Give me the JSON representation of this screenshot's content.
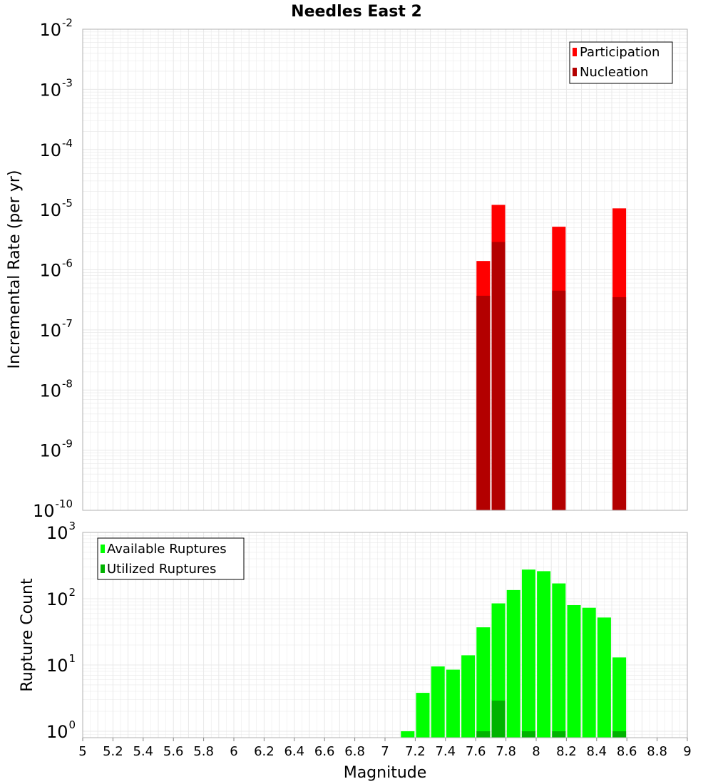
{
  "title": "Needles East 2",
  "xlabel": "Magnitude",
  "x_ticks": [
    "5",
    "5.2",
    "5.4",
    "5.6",
    "5.8",
    "6",
    "6.2",
    "6.4",
    "6.6",
    "6.8",
    "7",
    "7.2",
    "7.4",
    "7.6",
    "7.8",
    "8",
    "8.2",
    "8.4",
    "8.6",
    "8.8",
    "9"
  ],
  "colors": {
    "participation": "#ff0000",
    "nucleation": "#b30000",
    "available": "#00ff00",
    "utilized": "#00b300",
    "grid": "#e8e8e8",
    "frame": "#b0b0b0"
  },
  "chart_data": [
    {
      "type": "bar",
      "name": "rate",
      "ylabel": "Incremental Rate (per yr)",
      "yscale": "log",
      "xlim": [
        5,
        9
      ],
      "ylim": [
        1e-10,
        0.01
      ],
      "y_tick_exponents": [
        "-2",
        "-3",
        "-4",
        "-5",
        "-6",
        "-7",
        "-8",
        "-9",
        "-10"
      ],
      "legend": {
        "location": "top-right",
        "entries": [
          "Participation",
          "Nucleation"
        ]
      },
      "series": [
        {
          "name": "Participation",
          "color": "#ff0000",
          "x": [
            7.65,
            7.75,
            8.15,
            8.55
          ],
          "values": [
            1.4e-06,
            1.2e-05,
            5.2e-06,
            1.05e-05
          ]
        },
        {
          "name": "Nucleation",
          "color": "#b30000",
          "x": [
            7.65,
            7.75,
            8.15,
            8.55
          ],
          "values": [
            3.7e-07,
            2.9e-06,
            4.5e-07,
            3.5e-07
          ]
        }
      ]
    },
    {
      "type": "bar",
      "name": "count",
      "ylabel": "Rupture Count",
      "yscale": "log",
      "xlim": [
        5,
        9
      ],
      "ylim": [
        0.8,
        1000
      ],
      "y_tick_exponents": [
        "3",
        "2",
        "1",
        "0"
      ],
      "legend": {
        "location": "top-left",
        "entries": [
          "Available Ruptures",
          "Utilized Ruptures"
        ]
      },
      "series": [
        {
          "name": "Available Ruptures",
          "color": "#00ff00",
          "x": [
            7.15,
            7.25,
            7.35,
            7.45,
            7.55,
            7.65,
            7.75,
            7.85,
            7.95,
            8.05,
            8.15,
            8.25,
            8.35,
            8.45,
            8.55
          ],
          "values": [
            1,
            3.8,
            9.5,
            8.5,
            14,
            37,
            85,
            135,
            275,
            260,
            170,
            80,
            73,
            52,
            13
          ]
        },
        {
          "name": "Utilized Ruptures",
          "color": "#00b300",
          "x": [
            7.65,
            7.75,
            7.95,
            8.15,
            8.55
          ],
          "values": [
            1,
            2.9,
            1,
            1,
            1
          ]
        }
      ]
    }
  ]
}
